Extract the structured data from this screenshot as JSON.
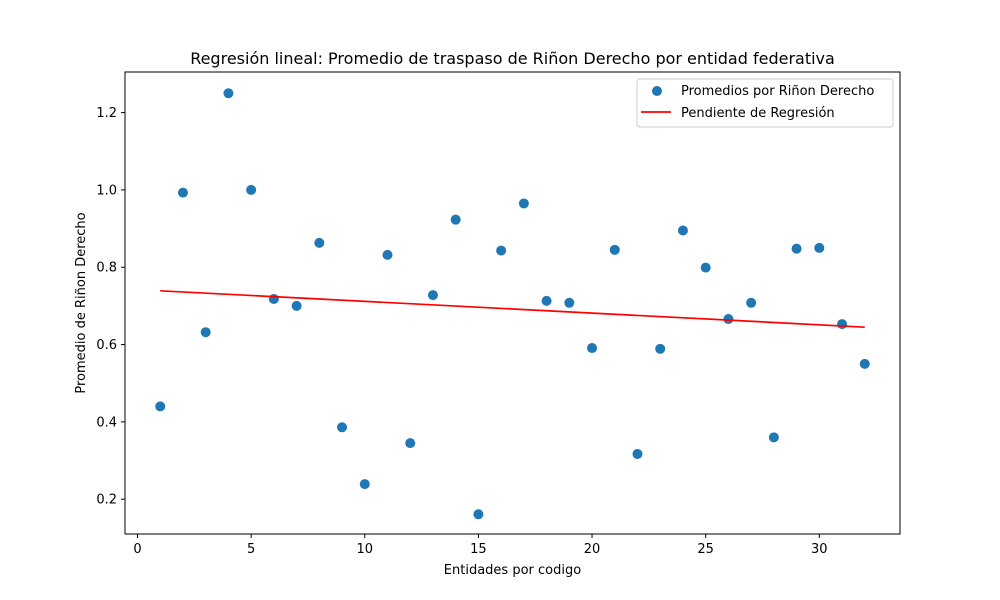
{
  "chart_data": {
    "type": "scatter",
    "title": "Regresión lineal: Promedio de traspaso de Riñon Derecho por entidad federativa",
    "xlabel": "Entidades por codigo",
    "ylabel": "Promedio de Riñon Derecho",
    "xlim": [
      -0.55,
      33.55
    ],
    "ylim": [
      0.11,
      1.305
    ],
    "xticks": [
      0,
      5,
      10,
      15,
      20,
      25,
      30
    ],
    "yticks": [
      0.2,
      0.4,
      0.6,
      0.8,
      1.0,
      1.2
    ],
    "xtick_labels": [
      "0",
      "5",
      "10",
      "15",
      "20",
      "25",
      "30"
    ],
    "ytick_labels": [
      "0.2",
      "0.4",
      "0.6",
      "0.8",
      "1.0",
      "1.2"
    ],
    "grid": false,
    "legend_position": "top-right",
    "series": [
      {
        "name": "Promedios por Riñon Derecho",
        "kind": "scatter",
        "color": "#1f77b4",
        "x": [
          1,
          2,
          3,
          4,
          5,
          6,
          7,
          8,
          9,
          10,
          11,
          12,
          13,
          14,
          15,
          16,
          17,
          18,
          19,
          20,
          21,
          22,
          23,
          24,
          25,
          26,
          27,
          28,
          29,
          30,
          31,
          32
        ],
        "y": [
          0.44,
          0.993,
          0.632,
          1.25,
          1.0,
          0.718,
          0.7,
          0.863,
          0.386,
          0.239,
          0.832,
          0.345,
          0.728,
          0.923,
          0.161,
          0.843,
          0.965,
          0.713,
          0.708,
          0.591,
          0.845,
          0.317,
          0.589,
          0.895,
          0.799,
          0.666,
          0.708,
          0.36,
          0.848,
          0.85,
          0.653,
          0.55
        ]
      },
      {
        "name": "Pendiente de Regresión",
        "kind": "line",
        "color": "#ff0000",
        "x": [
          1,
          32
        ],
        "y": [
          0.739,
          0.645
        ]
      }
    ]
  }
}
